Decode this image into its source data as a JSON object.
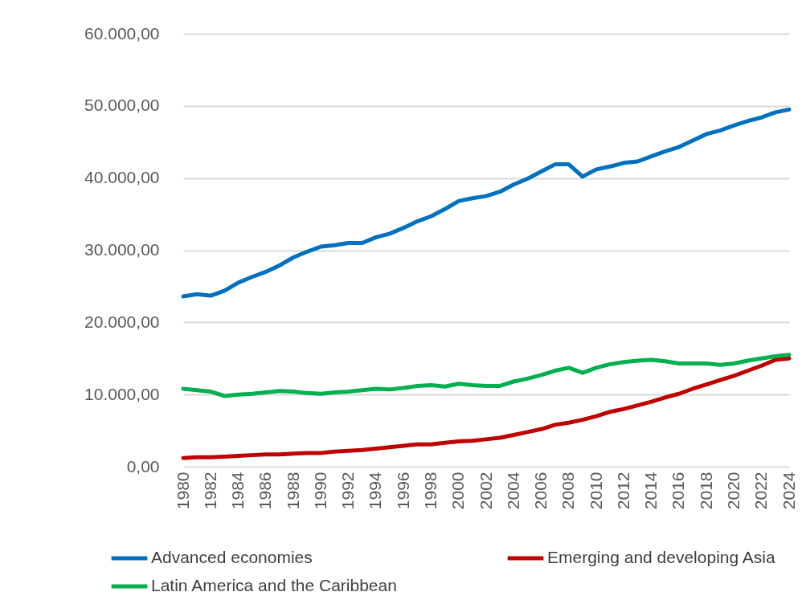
{
  "chart_data": {
    "type": "line",
    "categories": [
      "1980",
      null,
      "1982",
      null,
      "1984",
      null,
      "1986",
      null,
      "1988",
      null,
      "1990",
      null,
      "1992",
      null,
      "1994",
      null,
      "1996",
      null,
      "1998",
      null,
      "2000",
      null,
      "2002",
      null,
      "2004",
      null,
      "2006",
      null,
      "2008",
      null,
      "2010",
      null,
      "2012",
      null,
      "2014",
      null,
      "2016",
      null,
      "2018",
      null,
      "2020",
      null,
      "2022",
      null,
      "2024"
    ],
    "series": [
      {
        "name": "Advanced economies",
        "color": "#0070c0",
        "values": [
          23600,
          23900,
          23700,
          24400,
          25500,
          26300,
          27000,
          27900,
          29000,
          29800,
          30500,
          30700,
          31000,
          31000,
          31800,
          32300,
          33100,
          34000,
          34700,
          35700,
          36800,
          37200,
          37500,
          38100,
          39100,
          39900,
          40900,
          41900,
          41900,
          40200,
          41200,
          41600,
          42100,
          42300,
          43000,
          43700,
          44300,
          45200,
          46100,
          46600,
          47300,
          47900,
          48400,
          49100,
          49500
        ]
      },
      {
        "name": "Emerging and developing Asia",
        "color": "#c00000",
        "values": [
          1200,
          1300,
          1300,
          1400,
          1500,
          1600,
          1700,
          1700,
          1800,
          1900,
          1900,
          2100,
          2200,
          2300,
          2500,
          2700,
          2900,
          3100,
          3100,
          3300,
          3500,
          3600,
          3800,
          4000,
          4400,
          4800,
          5200,
          5800,
          6100,
          6500,
          7000,
          7600,
          8000,
          8500,
          9000,
          9600,
          10100,
          10800,
          11400,
          12000,
          12600,
          13300,
          14000,
          14800,
          15000
        ]
      },
      {
        "name": "Latin America and the Caribbean",
        "color": "#00b050",
        "values": [
          10800,
          10600,
          10400,
          9800,
          10000,
          10100,
          10300,
          10500,
          10400,
          10200,
          10100,
          10300,
          10400,
          10600,
          10800,
          10700,
          10900,
          11200,
          11300,
          11100,
          11500,
          11300,
          11200,
          11200,
          11800,
          12200,
          12700,
          13300,
          13700,
          13000,
          13700,
          14200,
          14500,
          14700,
          14800,
          14600,
          14300,
          14300,
          14300,
          14100,
          14300,
          14700,
          15000,
          15300,
          15500
        ]
      }
    ],
    "ylim": [
      0,
      60000
    ],
    "yticks": [
      {
        "value": 0,
        "label": "0,00"
      },
      {
        "value": 10000,
        "label": "10.000,00"
      },
      {
        "value": 20000,
        "label": "20.000,00"
      },
      {
        "value": 30000,
        "label": "30.000,00"
      },
      {
        "value": 40000,
        "label": "40.000,00"
      },
      {
        "value": 50000,
        "label": "50.000,00"
      },
      {
        "value": 60000,
        "label": "60.000,00"
      }
    ],
    "grid": "y",
    "legend": "bottom",
    "marker": "none",
    "line_style": "solid"
  }
}
